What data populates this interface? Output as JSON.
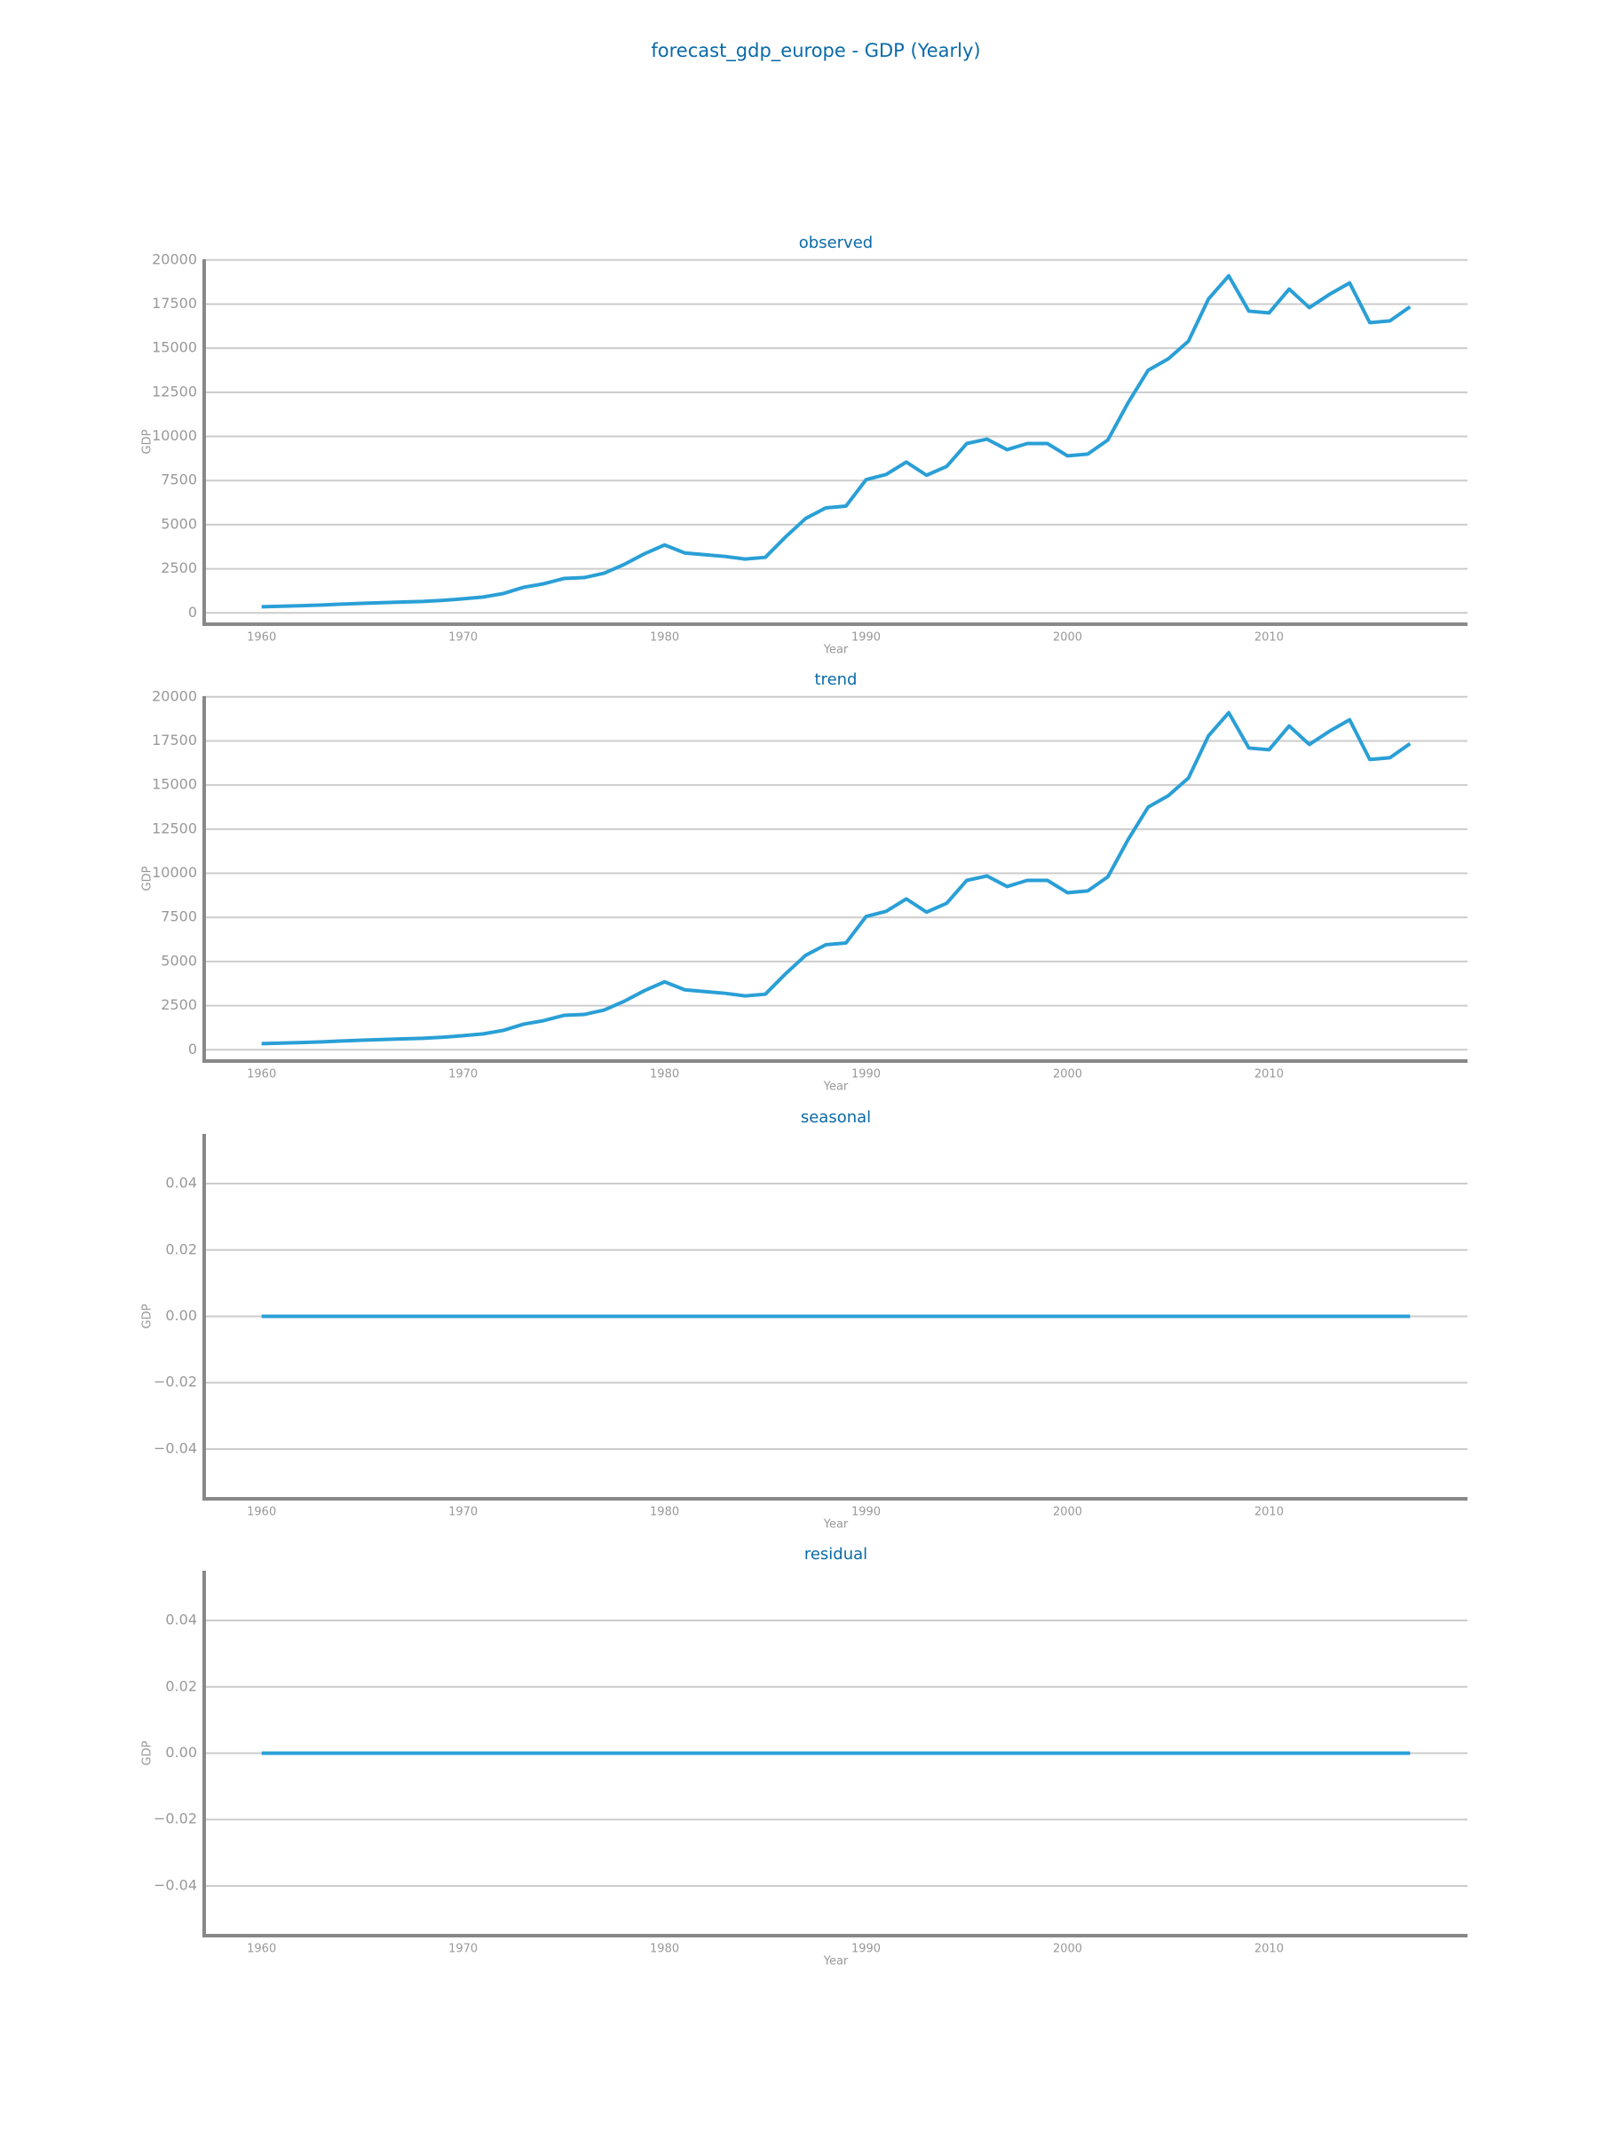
{
  "title": "forecast_gdp_europe - GDP (Yearly)",
  "chart_data": [
    {
      "type": "line",
      "title": "observed",
      "xlabel": "Year",
      "ylabel": "GDP",
      "grid": true,
      "x": [
        1960,
        1961,
        1962,
        1963,
        1964,
        1965,
        1966,
        1967,
        1968,
        1969,
        1970,
        1971,
        1972,
        1973,
        1974,
        1975,
        1976,
        1977,
        1978,
        1979,
        1980,
        1981,
        1982,
        1983,
        1984,
        1985,
        1986,
        1987,
        1988,
        1989,
        1990,
        1991,
        1992,
        1993,
        1994,
        1995,
        1996,
        1997,
        1998,
        1999,
        2000,
        2001,
        2002,
        2003,
        2004,
        2005,
        2006,
        2007,
        2008,
        2009,
        2010,
        2011,
        2012,
        2013,
        2014,
        2015,
        2016,
        2017
      ],
      "series": [
        {
          "color": "#2a9fd6",
          "values": [
            350,
            380,
            410,
            450,
            500,
            540,
            580,
            620,
            650,
            710,
            800,
            900,
            1100,
            1450,
            1650,
            1950,
            2000,
            2250,
            2750,
            3350,
            3850,
            3400,
            3300,
            3200,
            3050,
            3150,
            4300,
            5350,
            5950,
            6050,
            7550,
            7850,
            8550,
            7800,
            8300,
            9600,
            9850,
            9250,
            9600,
            9600,
            8900,
            9000,
            9800,
            11900,
            13750,
            14400,
            15400,
            17800,
            19100,
            17100,
            17000,
            18350,
            17300,
            18050,
            18700,
            16450,
            16550,
            17350
          ]
        }
      ],
      "xlim": [
        1957.15,
        2019.85
      ],
      "xticks": [
        1960,
        1970,
        1980,
        1990,
        2000,
        2010
      ],
      "ylim": [
        -640,
        20040
      ],
      "yticks": [
        0,
        2500,
        5000,
        7500,
        10000,
        12500,
        15000,
        17500,
        20000
      ]
    },
    {
      "type": "line",
      "title": "trend",
      "xlabel": "Year",
      "ylabel": "GDP",
      "grid": true,
      "x": [
        1960,
        1961,
        1962,
        1963,
        1964,
        1965,
        1966,
        1967,
        1968,
        1969,
        1970,
        1971,
        1972,
        1973,
        1974,
        1975,
        1976,
        1977,
        1978,
        1979,
        1980,
        1981,
        1982,
        1983,
        1984,
        1985,
        1986,
        1987,
        1988,
        1989,
        1990,
        1991,
        1992,
        1993,
        1994,
        1995,
        1996,
        1997,
        1998,
        1999,
        2000,
        2001,
        2002,
        2003,
        2004,
        2005,
        2006,
        2007,
        2008,
        2009,
        2010,
        2011,
        2012,
        2013,
        2014,
        2015,
        2016,
        2017
      ],
      "series": [
        {
          "color": "#2a9fd6",
          "values": [
            350,
            380,
            410,
            450,
            500,
            540,
            580,
            620,
            650,
            710,
            800,
            900,
            1100,
            1450,
            1650,
            1950,
            2000,
            2250,
            2750,
            3350,
            3850,
            3400,
            3300,
            3200,
            3050,
            3150,
            4300,
            5350,
            5950,
            6050,
            7550,
            7850,
            8550,
            7800,
            8300,
            9600,
            9850,
            9250,
            9600,
            9600,
            8900,
            9000,
            9800,
            11900,
            13750,
            14400,
            15400,
            17800,
            19100,
            17100,
            17000,
            18350,
            17300,
            18050,
            18700,
            16450,
            16550,
            17350
          ]
        }
      ],
      "xlim": [
        1957.15,
        2019.85
      ],
      "xticks": [
        1960,
        1970,
        1980,
        1990,
        2000,
        2010
      ],
      "ylim": [
        -640,
        20040
      ],
      "yticks": [
        0,
        2500,
        5000,
        7500,
        10000,
        12500,
        15000,
        17500,
        20000
      ]
    },
    {
      "type": "line",
      "title": "seasonal",
      "xlabel": "Year",
      "ylabel": "GDP",
      "grid": true,
      "x": [
        1960,
        1961,
        1962,
        1963,
        1964,
        1965,
        1966,
        1967,
        1968,
        1969,
        1970,
        1971,
        1972,
        1973,
        1974,
        1975,
        1976,
        1977,
        1978,
        1979,
        1980,
        1981,
        1982,
        1983,
        1984,
        1985,
        1986,
        1987,
        1988,
        1989,
        1990,
        1991,
        1992,
        1993,
        1994,
        1995,
        1996,
        1997,
        1998,
        1999,
        2000,
        2001,
        2002,
        2003,
        2004,
        2005,
        2006,
        2007,
        2008,
        2009,
        2010,
        2011,
        2012,
        2013,
        2014,
        2015,
        2016,
        2017
      ],
      "series": [
        {
          "color": "#2a9fd6",
          "values": [
            0,
            0,
            0,
            0,
            0,
            0,
            0,
            0,
            0,
            0,
            0,
            0,
            0,
            0,
            0,
            0,
            0,
            0,
            0,
            0,
            0,
            0,
            0,
            0,
            0,
            0,
            0,
            0,
            0,
            0,
            0,
            0,
            0,
            0,
            0,
            0,
            0,
            0,
            0,
            0,
            0,
            0,
            0,
            0,
            0,
            0,
            0,
            0,
            0,
            0,
            0,
            0,
            0,
            0,
            0,
            0,
            0,
            0
          ]
        }
      ],
      "xlim": [
        1957.15,
        2019.85
      ],
      "xticks": [
        1960,
        1970,
        1980,
        1990,
        2000,
        2010
      ],
      "ylim": [
        -0.055,
        0.055
      ],
      "yticks": [
        {
          "value": -0.04,
          "label": "−0.04"
        },
        {
          "value": -0.02,
          "label": "−0.02"
        },
        {
          "value": 0,
          "label": "0.00"
        },
        0.02,
        0.04
      ]
    },
    {
      "type": "line",
      "title": "residual",
      "xlabel": "Year",
      "ylabel": "GDP",
      "grid": true,
      "x": [
        1960,
        1961,
        1962,
        1963,
        1964,
        1965,
        1966,
        1967,
        1968,
        1969,
        1970,
        1971,
        1972,
        1973,
        1974,
        1975,
        1976,
        1977,
        1978,
        1979,
        1980,
        1981,
        1982,
        1983,
        1984,
        1985,
        1986,
        1987,
        1988,
        1989,
        1990,
        1991,
        1992,
        1993,
        1994,
        1995,
        1996,
        1997,
        1998,
        1999,
        2000,
        2001,
        2002,
        2003,
        2004,
        2005,
        2006,
        2007,
        2008,
        2009,
        2010,
        2011,
        2012,
        2013,
        2014,
        2015,
        2016,
        2017
      ],
      "series": [
        {
          "color": "#2a9fd6",
          "values": [
            0,
            0,
            0,
            0,
            0,
            0,
            0,
            0,
            0,
            0,
            0,
            0,
            0,
            0,
            0,
            0,
            0,
            0,
            0,
            0,
            0,
            0,
            0,
            0,
            0,
            0,
            0,
            0,
            0,
            0,
            0,
            0,
            0,
            0,
            0,
            0,
            0,
            0,
            0,
            0,
            0,
            0,
            0,
            0,
            0,
            0,
            0,
            0,
            0,
            0,
            0,
            0,
            0,
            0,
            0,
            0,
            0,
            0
          ]
        }
      ],
      "xlim": [
        1957.15,
        2019.85
      ],
      "xticks": [
        1960,
        1970,
        1980,
        1990,
        2000,
        2010
      ],
      "ylim": [
        -0.055,
        0.055
      ],
      "yticks": [
        {
          "value": -0.04,
          "label": "−0.04"
        },
        {
          "value": -0.02,
          "label": "−0.02"
        },
        {
          "value": 0,
          "label": "0.00"
        },
        0.02,
        0.04
      ]
    }
  ]
}
